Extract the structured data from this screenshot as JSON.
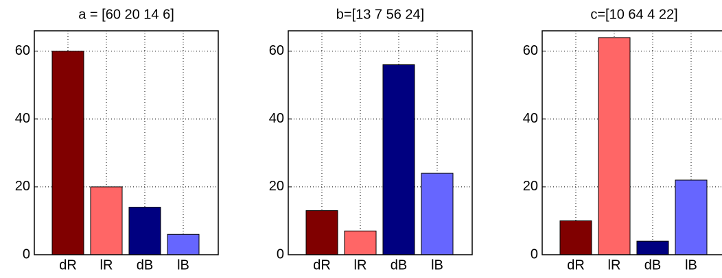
{
  "chart_data": [
    {
      "type": "bar",
      "title": "a = [60 20 14 6]",
      "categories": [
        "dR",
        "lR",
        "dB",
        "lB"
      ],
      "values": [
        60,
        20,
        14,
        6
      ],
      "colors": [
        "#800000",
        "#ff6666",
        "#000080",
        "#6666ff"
      ],
      "ylim": [
        0,
        66
      ],
      "yticks": [
        0,
        20,
        40,
        60
      ],
      "grid": true
    },
    {
      "type": "bar",
      "title": "b=[13 7 56 24]",
      "categories": [
        "dR",
        "lR",
        "dB",
        "lB"
      ],
      "values": [
        13,
        7,
        56,
        24
      ],
      "colors": [
        "#800000",
        "#ff6666",
        "#000080",
        "#6666ff"
      ],
      "ylim": [
        0,
        66
      ],
      "yticks": [
        0,
        20,
        40,
        60
      ],
      "grid": true
    },
    {
      "type": "bar",
      "title": "c=[10 64 4 22]",
      "categories": [
        "dR",
        "lR",
        "dB",
        "lB"
      ],
      "values": [
        10,
        64,
        4,
        22
      ],
      "colors": [
        "#800000",
        "#ff6666",
        "#000080",
        "#6666ff"
      ],
      "ylim": [
        0,
        66
      ],
      "yticks": [
        0,
        20,
        40,
        60
      ],
      "grid": true
    }
  ]
}
